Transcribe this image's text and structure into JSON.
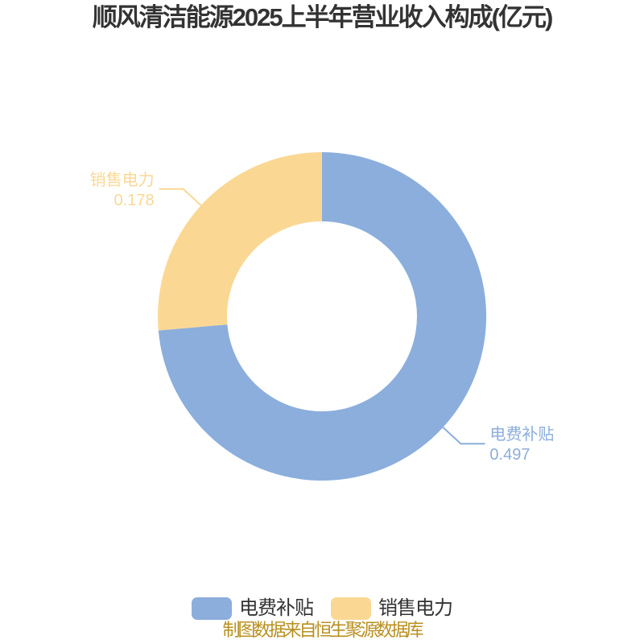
{
  "title": "顺风清洁能源2025上半年营业收入构成(亿元)",
  "caption": "制图数据来自恒生聚源数据库",
  "colors": {
    "blue": "#8BAEDC",
    "yellow": "#FAD894",
    "title_text": "#333333",
    "legend_text": "#333333",
    "caption_text": "#B8901F",
    "background": "#FFFFFF"
  },
  "chart_data": {
    "type": "pie",
    "subtype": "donut",
    "title": "顺风清洁能源2025上半年营业收入构成(亿元)",
    "unit": "亿元",
    "start_angle_deg": 0,
    "clockwise": true,
    "inner_radius_ratio": 0.58,
    "series": [
      {
        "name": "电费补贴",
        "value": 0.497,
        "color": "#8BAEDC"
      },
      {
        "name": "销售电力",
        "value": 0.178,
        "color": "#FAD894"
      }
    ],
    "labels_show_name_and_value": true,
    "legend": {
      "position": "bottom",
      "items": [
        "电费补贴",
        "销售电力"
      ]
    },
    "source_note": "制图数据来自恒生聚源数据库"
  }
}
